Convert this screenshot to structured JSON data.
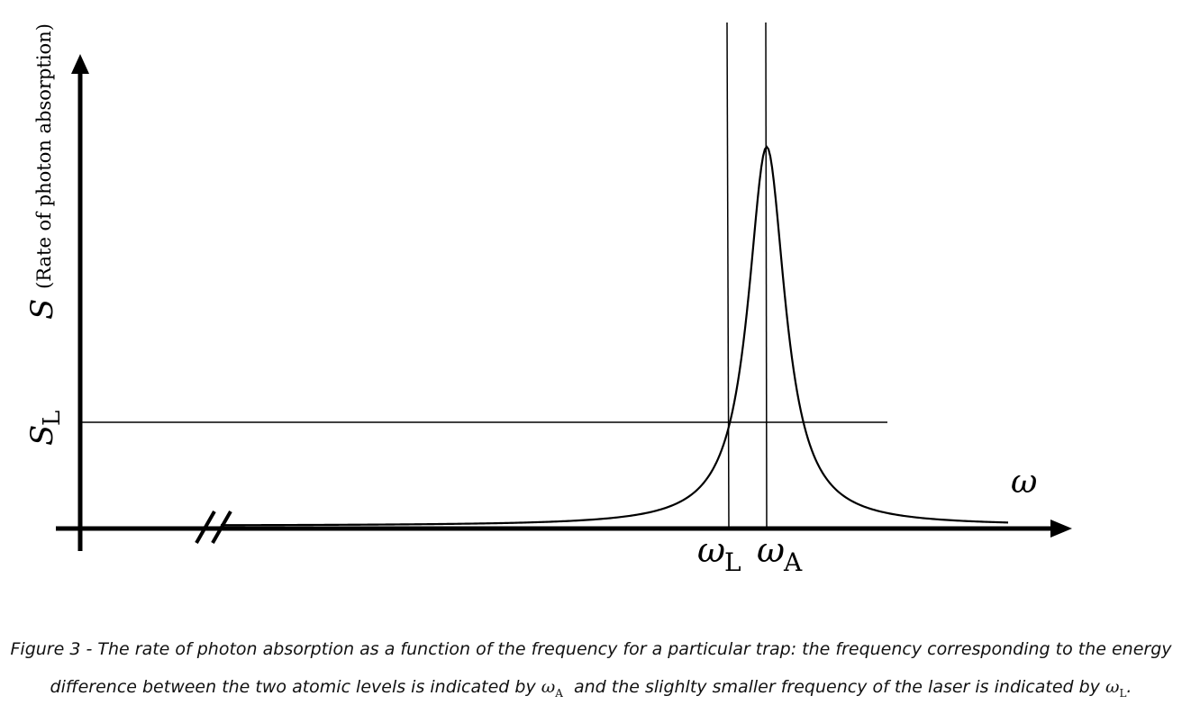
{
  "diagram": {
    "y_axis_label_symbol": "S",
    "y_axis_label_text": "(Rate of photon absorption)",
    "s_level_label": {
      "symbol": "S",
      "subscript": "L"
    },
    "x_axis_label": "ω",
    "omega_L_label": {
      "symbol": "ω",
      "subscript": "L"
    },
    "omega_A_label": {
      "symbol": "ω",
      "subscript": "A"
    },
    "axis_break": "//"
  },
  "caption": {
    "line1": "Figure 3 - The rate of  photon absorption as a function of the frequency for a particular trap: the frequency corresponding to the energy",
    "line2_part1": "difference between the two atomic levels is indicated by ",
    "line2_sym1": "ω",
    "line2_sub1": "A",
    "line2_part2": "  and the slighlty smaller frequency of the laser is indicated by ",
    "line2_sym2": "ω",
    "line2_sub2": "L",
    "line2_end": "."
  }
}
